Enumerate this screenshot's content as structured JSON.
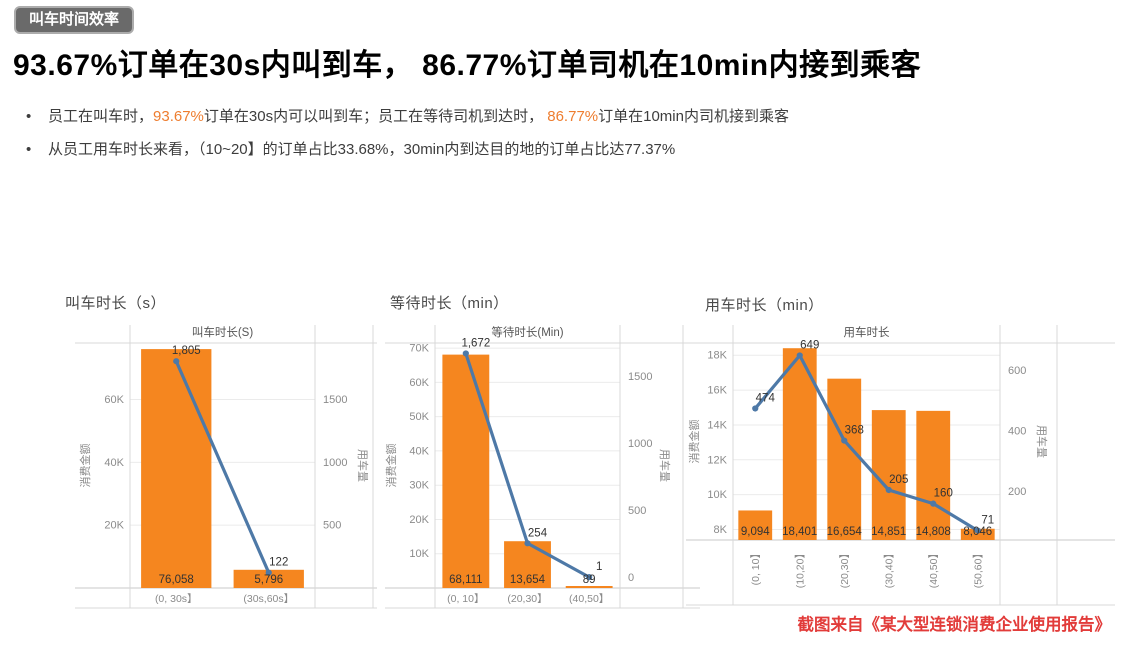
{
  "badge": {
    "label": "叫车时间效率"
  },
  "title": "93.67%订单在30s内叫到车， 86.77%订单司机在10min内接到乘客",
  "bullets": [
    {
      "segments": [
        {
          "text": "员工在叫车时，",
          "highlight": false
        },
        {
          "text": "93.67%",
          "highlight": true
        },
        {
          "text": "订单在30s内可以叫到车；员工在等待司机到达时， ",
          "highlight": false
        },
        {
          "text": "86.77%",
          "highlight": true
        },
        {
          "text": "订单在10min内司机接到乘客",
          "highlight": false
        }
      ]
    },
    {
      "segments": [
        {
          "text": "从员工用车时长来看，（10~20】的订单占比33.68%，30min内到达目的地的订单占比达77.37%",
          "highlight": false
        }
      ]
    }
  ],
  "source_note": "截图来自《某大型连锁消费企业使用报告》",
  "colors": {
    "bar": "#F5861F",
    "line": "#4E79A7",
    "highlight": "#EE7D2F",
    "source_red": "#E23C3A",
    "grid": "#EBEBEB",
    "frame": "#D9D9D9",
    "axis_line": "#C9C9C9",
    "tick_text": "#8B8B8B",
    "inner_title_text": "#565656",
    "data_label_text": "#333333"
  },
  "chart_data": [
    {
      "type": "combo-bar-line",
      "outer_title": "叫车时长（s）",
      "inner_title": "叫车时长(S)",
      "categories": [
        "(0, 30s】",
        "(30s,60s】"
      ],
      "bars": {
        "name": "消费金额",
        "values": [
          76058,
          5796
        ],
        "labels": [
          "76,058",
          "5,796"
        ]
      },
      "line": {
        "name": "用车量",
        "values": [
          1805,
          122
        ],
        "labels": [
          "1,805",
          "122"
        ]
      },
      "left_axis": {
        "label": "消费金额",
        "min": 0,
        "max": 78000,
        "ticks": [
          {
            "value": 60000,
            "label": "60K"
          },
          {
            "value": 40000,
            "label": "40K"
          },
          {
            "value": 20000,
            "label": "20K"
          }
        ]
      },
      "right_axis": {
        "label": "用车量",
        "min": 0,
        "max": 1950,
        "ticks": [
          {
            "value": 1500,
            "label": "1500"
          },
          {
            "value": 1000,
            "label": "1000"
          },
          {
            "value": 500,
            "label": "500"
          }
        ]
      },
      "rotated_category_labels": false
    },
    {
      "type": "combo-bar-line",
      "outer_title": "等待时长（min）",
      "inner_title": "等待时长(Min)",
      "categories": [
        "(0, 10】",
        "(20,30】",
        "(40,50】"
      ],
      "bars": {
        "name": "消费金额",
        "values": [
          68111,
          13654,
          89
        ],
        "labels": [
          "68,111",
          "13,654",
          "89"
        ]
      },
      "line": {
        "name": "用车量",
        "values": [
          1672,
          254,
          1
        ],
        "labels": [
          "1,672",
          "254",
          "1"
        ]
      },
      "left_axis": {
        "label": "消费金额",
        "min": 0,
        "max": 71500,
        "ticks": [
          {
            "value": 70000,
            "label": "70K"
          },
          {
            "value": 60000,
            "label": "60K"
          },
          {
            "value": 50000,
            "label": "50K"
          },
          {
            "value": 40000,
            "label": "40K"
          },
          {
            "value": 30000,
            "label": "30K"
          },
          {
            "value": 20000,
            "label": "20K"
          },
          {
            "value": 10000,
            "label": "10K"
          }
        ]
      },
      "right_axis": {
        "label": "用车量",
        "min": -80,
        "max": 1750,
        "ticks": [
          {
            "value": 1500,
            "label": "1500"
          },
          {
            "value": 1000,
            "label": "1000"
          },
          {
            "value": 500,
            "label": "500"
          },
          {
            "value": 0,
            "label": "0"
          }
        ]
      },
      "rotated_category_labels": false
    },
    {
      "type": "combo-bar-line",
      "outer_title": "用车时长（min）",
      "inner_title": "用车时长",
      "categories": [
        "(0, 10】",
        "(10,20】",
        "(20,30】",
        "(30,40】",
        "(40,50】",
        "(50,60】"
      ],
      "bars": {
        "name": "消费金额",
        "values": [
          9094,
          18401,
          16654,
          14851,
          14808,
          8046
        ],
        "labels": [
          "9,094",
          "18,401",
          "16,654",
          "14,851",
          "14,808",
          "8,046"
        ]
      },
      "line": {
        "name": "用车量",
        "values": [
          474,
          649,
          368,
          205,
          160,
          71
        ],
        "labels": [
          "474",
          "649",
          "368",
          "205",
          "160",
          "71"
        ]
      },
      "left_axis": {
        "label": "消费金额",
        "min": 7400,
        "max": 18700,
        "ticks": [
          {
            "value": 18000,
            "label": "18K"
          },
          {
            "value": 16000,
            "label": "16K"
          },
          {
            "value": 14000,
            "label": "14K"
          },
          {
            "value": 12000,
            "label": "12K"
          },
          {
            "value": 10000,
            "label": "10K"
          },
          {
            "value": 8000,
            "label": "8K"
          }
        ]
      },
      "right_axis": {
        "label": "用车量",
        "min": 40,
        "max": 690,
        "ticks": [
          {
            "value": 600,
            "label": "600"
          },
          {
            "value": 400,
            "label": "400"
          },
          {
            "value": 200,
            "label": "200"
          }
        ]
      },
      "rotated_category_labels": true
    }
  ]
}
